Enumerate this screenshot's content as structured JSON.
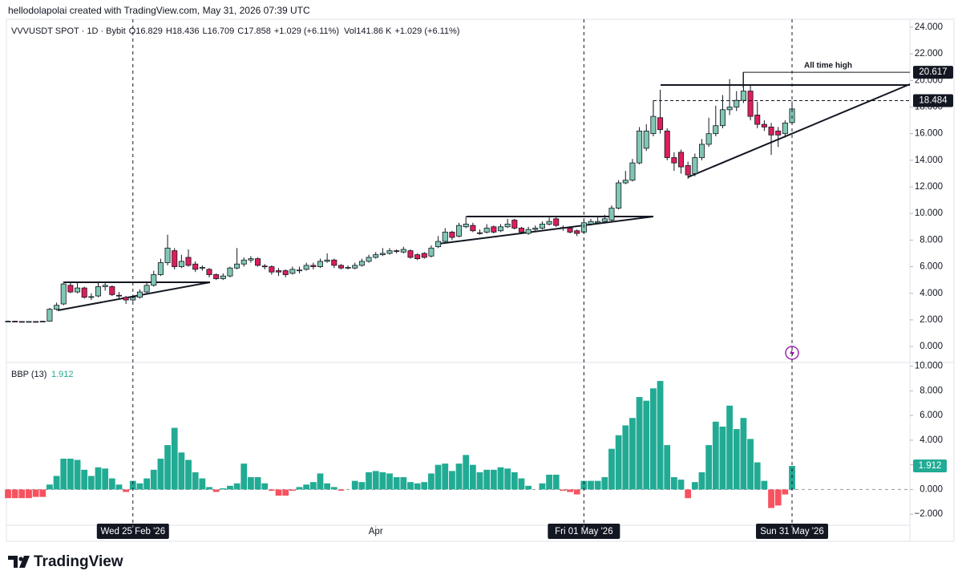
{
  "header": {
    "attribution": "hellodolapolai created with TradingView.com, May 31, 2026 07:39 UTC",
    "symbol": "VVVUSDT SPOT · 1D · Bybit",
    "ohlc_prefixes": [
      "O",
      "H",
      "L",
      "C"
    ],
    "change": "+1.029 (+6.11%)",
    "volume_label": "Vol",
    "volume": "141.86 K"
  },
  "brand": "TradingView",
  "chart_data": [
    {
      "type": "candlestick",
      "x": [
        "2026-02-07",
        "2026-02-08",
        "2026-02-09",
        "2026-02-10",
        "2026-02-11",
        "2026-02-12",
        "2026-02-13",
        "2026-02-14",
        "2026-02-15",
        "2026-02-16",
        "2026-02-17",
        "2026-02-18",
        "2026-02-19",
        "2026-02-20",
        "2026-02-21",
        "2026-02-22",
        "2026-02-23",
        "2026-02-24",
        "2026-02-25",
        "2026-02-26",
        "2026-02-27",
        "2026-02-28",
        "2026-03-01",
        "2026-03-02",
        "2026-03-03",
        "2026-03-04",
        "2026-03-05",
        "2026-03-06",
        "2026-03-07",
        "2026-03-08",
        "2026-03-09",
        "2026-03-10",
        "2026-03-11",
        "2026-03-12",
        "2026-03-13",
        "2026-03-14",
        "2026-03-15",
        "2026-03-16",
        "2026-03-17",
        "2026-03-18",
        "2026-03-19",
        "2026-03-20",
        "2026-03-21",
        "2026-03-22",
        "2026-03-23",
        "2026-03-24",
        "2026-03-25",
        "2026-03-26",
        "2026-03-27",
        "2026-03-28",
        "2026-03-29",
        "2026-03-30",
        "2026-03-31",
        "2026-04-01",
        "2026-04-02",
        "2026-04-03",
        "2026-04-04",
        "2026-04-05",
        "2026-04-06",
        "2026-04-07",
        "2026-04-08",
        "2026-04-09",
        "2026-04-10",
        "2026-04-11",
        "2026-04-12",
        "2026-04-13",
        "2026-04-14",
        "2026-04-15",
        "2026-04-16",
        "2026-04-17",
        "2026-04-18",
        "2026-04-19",
        "2026-04-20",
        "2026-04-21",
        "2026-04-22",
        "2026-04-23",
        "2026-04-24",
        "2026-04-25",
        "2026-04-26",
        "2026-04-27",
        "2026-04-28",
        "2026-04-29",
        "2026-04-30",
        "2026-05-01",
        "2026-05-02",
        "2026-05-03",
        "2026-05-04",
        "2026-05-05",
        "2026-05-06",
        "2026-05-07",
        "2026-05-08",
        "2026-05-09",
        "2026-05-10",
        "2026-05-11",
        "2026-05-12",
        "2026-05-13",
        "2026-05-14",
        "2026-05-15",
        "2026-05-16",
        "2026-05-17",
        "2026-05-18",
        "2026-05-19",
        "2026-05-20",
        "2026-05-21",
        "2026-05-22",
        "2026-05-23",
        "2026-05-24",
        "2026-05-25",
        "2026-05-26",
        "2026-05-27",
        "2026-05-28",
        "2026-05-29",
        "2026-05-30",
        "2026-05-31"
      ],
      "open": [
        1.9,
        1.9,
        1.88,
        1.87,
        1.88,
        1.86,
        1.9,
        2.8,
        3.2,
        4.6,
        4.1,
        4.4,
        3.7,
        3.8,
        4.5,
        4.5,
        3.85,
        3.7,
        3.5,
        3.7,
        4.1,
        4.6,
        5.4,
        6.3,
        7.2,
        6.0,
        6.7,
        6.2,
        5.9,
        5.8,
        5.4,
        5.1,
        5.3,
        5.9,
        6.2,
        6.5,
        6.6,
        6.05,
        6.0,
        5.7,
        5.7,
        5.5,
        5.7,
        5.8,
        6.1,
        6.0,
        6.4,
        6.5,
        6.1,
        5.9,
        5.9,
        6.1,
        6.4,
        6.7,
        6.9,
        7.0,
        7.2,
        7.1,
        7.2,
        6.9,
        7.0,
        6.8,
        7.5,
        7.9,
        8.6,
        8.3,
        9.0,
        9.1,
        8.55,
        8.6,
        9.0,
        8.7,
        9.0,
        9.5,
        8.9,
        8.5,
        8.8,
        8.9,
        9.2,
        9.6,
        8.95,
        8.9,
        8.7,
        8.6,
        9.2,
        9.3,
        9.4,
        9.5,
        10.4,
        12.3,
        12.5,
        13.8,
        14.9,
        16.0,
        17.2,
        16.2,
        14.2,
        14.6,
        13.6,
        13.0,
        14.2,
        15.2,
        16.0,
        16.6,
        17.8,
        18.0,
        18.5,
        19.2,
        17.4,
        16.7,
        16.5,
        16.2,
        16.0,
        16.829
      ],
      "high": [
        1.95,
        1.93,
        1.9,
        1.9,
        1.9,
        1.93,
        2.9,
        3.3,
        4.9,
        4.8,
        4.8,
        4.5,
        4.0,
        4.8,
        4.8,
        4.6,
        4.1,
        3.8,
        3.9,
        4.3,
        4.8,
        5.7,
        6.6,
        8.4,
        7.4,
        6.9,
        7.3,
        6.4,
        6.1,
        5.9,
        5.5,
        5.5,
        6.0,
        7.4,
        6.7,
        6.8,
        6.7,
        6.2,
        6.1,
        5.9,
        5.8,
        6.0,
        6.0,
        6.3,
        6.3,
        6.6,
        7.0,
        6.6,
        6.2,
        6.1,
        6.3,
        6.6,
        6.9,
        7.1,
        7.4,
        7.4,
        7.3,
        7.5,
        7.3,
        7.0,
        7.1,
        7.6,
        8.3,
        8.9,
        8.7,
        9.3,
        9.8,
        9.3,
        8.8,
        9.2,
        9.1,
        9.2,
        9.6,
        9.6,
        9.0,
        9.0,
        9.1,
        9.4,
        9.7,
        9.7,
        9.1,
        9.0,
        8.8,
        9.5,
        9.6,
        9.7,
        9.9,
        10.6,
        12.5,
        13.2,
        14.1,
        16.5,
        16.7,
        18.5,
        19.3,
        16.4,
        14.6,
        14.8,
        13.9,
        14.5,
        15.6,
        17.2,
        18.1,
        18.9,
        20.1,
        19.2,
        20.617,
        19.6,
        18.4,
        17.0,
        16.8,
        16.5,
        17.0,
        18.436
      ],
      "low": [
        1.85,
        1.85,
        1.84,
        1.85,
        1.84,
        1.84,
        1.88,
        2.7,
        3.1,
        4.0,
        4.0,
        3.6,
        3.5,
        3.7,
        4.2,
        3.8,
        3.6,
        3.2,
        3.4,
        3.6,
        4.0,
        4.5,
        5.3,
        6.1,
        5.8,
        5.9,
        6.0,
        5.6,
        5.7,
        5.2,
        5.0,
        5.0,
        5.2,
        5.8,
        6.0,
        6.3,
        6.0,
        5.8,
        5.4,
        5.3,
        5.2,
        5.4,
        5.5,
        5.7,
        5.8,
        5.9,
        6.3,
        5.9,
        5.8,
        5.8,
        5.8,
        6.0,
        6.3,
        6.6,
        6.8,
        6.9,
        7.0,
        7.0,
        6.6,
        6.5,
        6.6,
        6.7,
        7.4,
        7.8,
        8.0,
        8.2,
        8.9,
        8.6,
        8.4,
        8.5,
        8.5,
        8.6,
        8.9,
        8.8,
        8.5,
        8.4,
        8.7,
        8.8,
        9.1,
        9.0,
        8.7,
        8.5,
        8.3,
        8.5,
        9.1,
        9.2,
        9.3,
        9.4,
        10.3,
        12.2,
        12.4,
        13.7,
        14.7,
        15.8,
        16.0,
        14.0,
        13.2,
        13.0,
        12.6,
        12.8,
        14.0,
        15.0,
        15.8,
        16.4,
        17.4,
        17.7,
        18.3,
        17.0,
        16.4,
        16.2,
        14.4,
        15.0,
        15.7,
        16.709
      ],
      "close": [
        1.9,
        1.88,
        1.87,
        1.88,
        1.86,
        1.9,
        2.8,
        3.1,
        4.7,
        4.1,
        4.4,
        3.7,
        3.75,
        4.5,
        4.6,
        3.9,
        3.8,
        3.5,
        3.7,
        4.1,
        4.6,
        5.4,
        6.3,
        7.4,
        6.0,
        6.4,
        6.1,
        5.8,
        5.95,
        5.4,
        5.1,
        5.3,
        5.9,
        6.2,
        6.5,
        6.6,
        6.1,
        6.0,
        5.6,
        5.6,
        5.4,
        5.8,
        5.75,
        6.1,
        6.0,
        6.4,
        6.5,
        6.1,
        5.9,
        5.95,
        6.1,
        6.4,
        6.7,
        6.9,
        7.0,
        7.2,
        7.15,
        7.3,
        6.7,
        6.6,
        6.7,
        7.4,
        7.9,
        8.6,
        8.2,
        9.1,
        9.2,
        8.7,
        8.5,
        8.9,
        8.6,
        9.0,
        9.2,
        8.9,
        8.6,
        8.8,
        8.9,
        9.2,
        9.4,
        9.1,
        8.9,
        8.6,
        8.5,
        9.3,
        9.4,
        9.4,
        9.6,
        10.4,
        12.3,
        12.5,
        13.8,
        16.2,
        16.2,
        17.3,
        16.3,
        14.2,
        13.8,
        13.5,
        12.9,
        14.2,
        15.2,
        16.0,
        16.6,
        17.8,
        18.0,
        18.5,
        19.2,
        17.3,
        16.7,
        16.5,
        15.9,
        15.9,
        16.8,
        17.858
      ],
      "up_color": "#80c7b4",
      "down_color": "#dc1e5a",
      "ylim": [
        -1.2,
        24.6
      ],
      "yticks": [
        {
          "value": 0,
          "label": "0.000"
        },
        {
          "value": 2,
          "label": "2.000"
        },
        {
          "value": 4,
          "label": "4.000"
        },
        {
          "value": 6,
          "label": "6.000"
        },
        {
          "value": 8,
          "label": "8.000"
        },
        {
          "value": 10,
          "label": "10.000"
        },
        {
          "value": 12,
          "label": "12.000"
        },
        {
          "value": 14,
          "label": "14.000"
        },
        {
          "value": 16,
          "label": "16.000"
        },
        {
          "value": 18,
          "label": "18.000"
        },
        {
          "value": 20,
          "label": "20.000"
        },
        {
          "value": 22,
          "label": "22.000"
        },
        {
          "value": 24,
          "label": "24.000"
        }
      ],
      "price_lines": [
        {
          "value": 20.617,
          "style": "solid",
          "text": "All time high"
        },
        {
          "value": 18.484,
          "style": "dashed"
        }
      ],
      "grid": false
    },
    {
      "type": "bar",
      "title": "BBP (13)",
      "values": [
        -0.7,
        -0.7,
        -0.7,
        -0.7,
        -0.6,
        -0.6,
        0.4,
        1.1,
        2.5,
        2.5,
        2.4,
        1.6,
        1.1,
        1.8,
        1.7,
        0.9,
        0.4,
        -0.2,
        0.7,
        0.5,
        0.9,
        1.6,
        2.5,
        3.6,
        5.0,
        3.0,
        2.4,
        1.4,
        0.9,
        0.2,
        -0.2,
        0.1,
        0.3,
        0.5,
        2.1,
        1.0,
        1.0,
        0.5,
        -0.1,
        -0.5,
        -0.5,
        -0.1,
        0.2,
        0.4,
        0.6,
        1.3,
        0.5,
        0.2,
        -0.1,
        0.0,
        0.7,
        0.6,
        1.4,
        1.5,
        1.4,
        1.3,
        1.0,
        1.0,
        0.6,
        0.5,
        0.6,
        1.3,
        2.0,
        2.1,
        1.5,
        2.1,
        2.8,
        2.0,
        1.4,
        1.6,
        1.6,
        1.8,
        1.7,
        1.4,
        0.9,
        0.3,
        0.0,
        0.5,
        1.2,
        1.2,
        -0.1,
        -0.2,
        -0.4,
        0.7,
        0.7,
        0.7,
        1.0,
        3.3,
        4.4,
        5.2,
        5.8,
        7.5,
        7.2,
        8.2,
        8.8,
        3.6,
        1.0,
        0.8,
        -0.7,
        0.6,
        1.4,
        3.6,
        5.5,
        5.1,
        6.8,
        4.9,
        5.8,
        4.1,
        2.2,
        0.7,
        -1.5,
        -1.3,
        -0.4,
        1.912
      ],
      "positive_color": "#22ab94",
      "negative_color": "#f7525f",
      "ylim": [
        -2.9,
        10.3
      ],
      "yticks": [
        {
          "value": -2,
          "label": "−2.000"
        },
        {
          "value": 0,
          "label": "0.000"
        },
        {
          "value": 2,
          "label": "2.000"
        },
        {
          "value": 4,
          "label": "4.000"
        },
        {
          "value": 6,
          "label": "6.000"
        },
        {
          "value": 8,
          "label": "8.000"
        },
        {
          "value": 10,
          "label": "10.000"
        }
      ],
      "xticks": [
        {
          "value": "2026-02-25",
          "label": "Wed 25 Feb '26"
        },
        {
          "value": "2026-04-01",
          "label": "Apr"
        },
        {
          "value": "2026-05-01",
          "label": "Fri 01 May '26"
        },
        {
          "value": "2026-05-31",
          "label": "Sun 31 May '26"
        }
      ],
      "marked_dates": [
        "2026-02-25",
        "2026-05-01",
        "2026-05-31"
      ]
    }
  ]
}
